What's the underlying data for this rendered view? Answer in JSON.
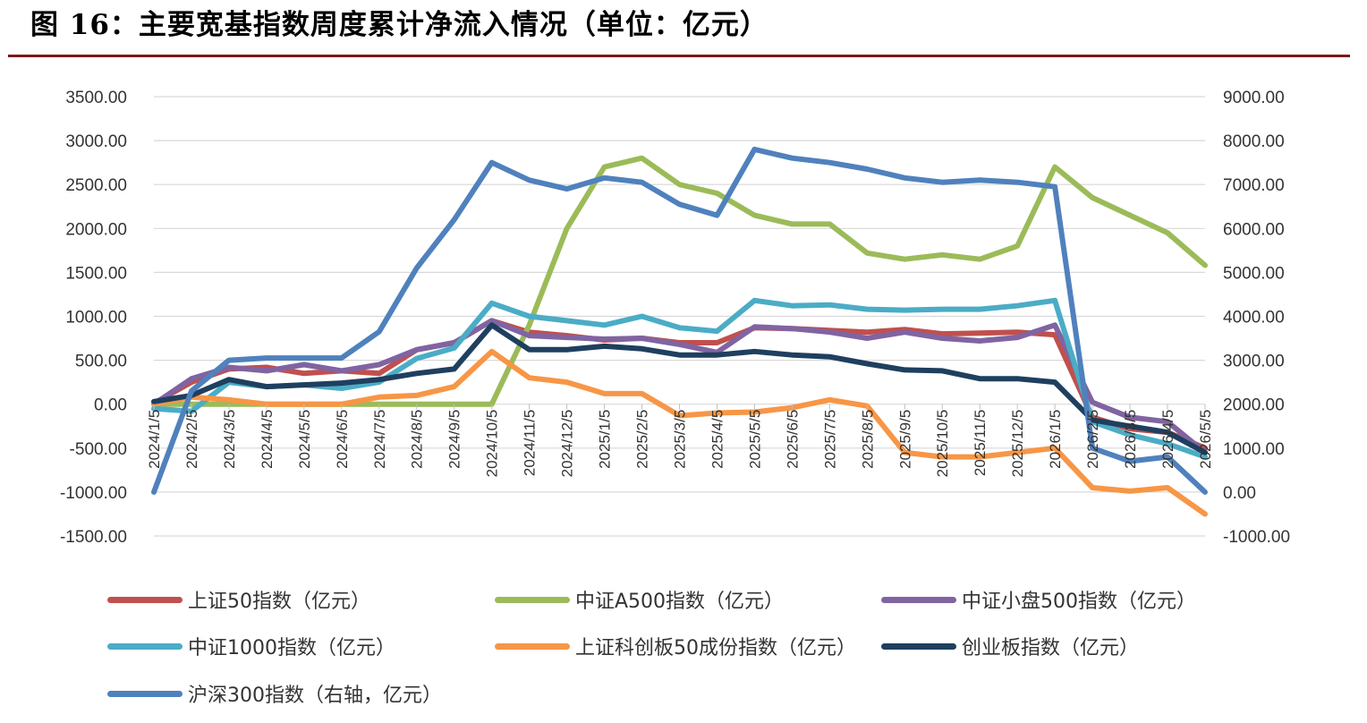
{
  "figure": {
    "title": "图 16：主要宽基指数周度累计净流入情况（单位：亿元）"
  },
  "chart_data": {
    "type": "line",
    "x": [
      "2024/1/5",
      "2024/2/5",
      "2024/3/5",
      "2024/4/5",
      "2024/5/5",
      "2024/6/5",
      "2024/7/5",
      "2024/8/5",
      "2024/9/5",
      "2024/10/5",
      "2024/11/5",
      "2024/12/5",
      "2025/1/5",
      "2025/2/5",
      "2025/3/5",
      "2025/4/5",
      "2025/5/5",
      "2025/6/5",
      "2025/7/5",
      "2025/8/5",
      "2025/9/5",
      "2025/10/5",
      "2025/11/5",
      "2025/12/5",
      "2026/1/5",
      "2026/2/5",
      "2026/3/5",
      "2026/4/5",
      "2026/5/5"
    ],
    "y_left": {
      "lim": [
        -1500,
        3500
      ],
      "ticks": [
        "-1500.00",
        "-1000.00",
        "-500.00",
        "0.00",
        "500.00",
        "1000.00",
        "1500.00",
        "2000.00",
        "2500.00",
        "3000.00",
        "3500.00"
      ]
    },
    "y_right": {
      "lim": [
        -1000,
        9000
      ],
      "ticks": [
        "-1000.00",
        "0.00",
        "1000.00",
        "2000.00",
        "3000.00",
        "4000.00",
        "5000.00",
        "6000.00",
        "7000.00",
        "8000.00",
        "9000.00"
      ]
    },
    "grid": true,
    "legend_position": "bottom",
    "series": [
      {
        "name": "上证50指数（亿元）",
        "axis": "left",
        "color": "#c0504d",
        "values": [
          10,
          250,
          400,
          420,
          350,
          380,
          350,
          620,
          700,
          950,
          820,
          780,
          730,
          750,
          700,
          700,
          870,
          860,
          840,
          820,
          850,
          800,
          810,
          820,
          790,
          -150,
          -280,
          -320,
          -500
        ]
      },
      {
        "name": "中证A500指数（亿元）",
        "axis": "left",
        "color": "#9bbb59",
        "values": [
          0,
          0,
          0,
          0,
          0,
          0,
          0,
          0,
          0,
          0,
          900,
          2000,
          2700,
          2800,
          2500,
          2400,
          2150,
          2050,
          2050,
          1720,
          1650,
          1700,
          1650,
          1800,
          2700,
          2350,
          2150,
          1950,
          1580
        ]
      },
      {
        "name": "中证小盘500指数（亿元）",
        "axis": "left",
        "color": "#8064a2",
        "values": [
          0,
          290,
          420,
          380,
          450,
          380,
          450,
          620,
          700,
          950,
          780,
          760,
          740,
          750,
          680,
          590,
          880,
          860,
          820,
          750,
          820,
          750,
          720,
          760,
          900,
          20,
          -150,
          -200,
          -550
        ]
      },
      {
        "name": "中证1000指数（亿元）",
        "axis": "left",
        "color": "#4bacc6",
        "values": [
          -50,
          -80,
          250,
          200,
          220,
          180,
          250,
          520,
          640,
          1150,
          1000,
          950,
          900,
          1000,
          870,
          830,
          1180,
          1120,
          1130,
          1080,
          1070,
          1080,
          1080,
          1120,
          1180,
          -200,
          -350,
          -450,
          -600
        ]
      },
      {
        "name": "上证科创板50成份指数（亿元）",
        "axis": "left",
        "color": "#f79646",
        "values": [
          0,
          80,
          50,
          0,
          0,
          0,
          80,
          100,
          200,
          600,
          300,
          250,
          120,
          120,
          -130,
          -100,
          -90,
          -40,
          50,
          -20,
          -550,
          -600,
          -600,
          -550,
          -500,
          -950,
          -990,
          -950,
          -1250
        ]
      },
      {
        "name": "创业板指数（亿元）",
        "axis": "left",
        "color": "#1f3f5f",
        "values": [
          30,
          100,
          280,
          200,
          220,
          240,
          280,
          350,
          400,
          900,
          620,
          620,
          660,
          630,
          560,
          560,
          600,
          560,
          540,
          460,
          390,
          380,
          290,
          290,
          250,
          -180,
          -250,
          -320,
          -550
        ]
      },
      {
        "name": "沪深300指数（右轴，亿元）",
        "axis": "right",
        "color": "#4f81bd",
        "values": [
          0,
          2300,
          3000,
          3050,
          3050,
          3050,
          3650,
          5100,
          6200,
          7500,
          7100,
          6900,
          7150,
          7050,
          6550,
          6300,
          7800,
          7600,
          7500,
          7350,
          7150,
          7050,
          7100,
          7050,
          6950,
          1000,
          700,
          800,
          0
        ]
      }
    ]
  }
}
